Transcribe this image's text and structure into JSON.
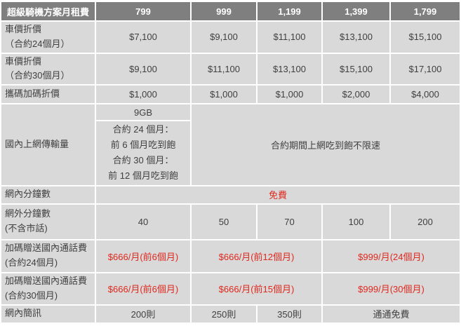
{
  "colors": {
    "header_bg": "#7f7f7f",
    "header_text": "#ffffff",
    "cell_bg": "#d9d9d9",
    "grid": "#ffffff",
    "body_text": "#404040",
    "highlight_red": "#e0281d"
  },
  "table": {
    "header": {
      "title": "超級騎機方案月租費",
      "plans": [
        "799",
        "999",
        "1,199",
        "1,399",
        "1,799"
      ]
    },
    "rows": {
      "car_discount_24": {
        "label_line1": "車價折價",
        "label_line2": "（合約24個月）",
        "values": [
          "$7,100",
          "$9,100",
          "$11,100",
          "$13,100",
          "$15,100"
        ]
      },
      "car_discount_30": {
        "label_line1": "車價折價",
        "label_line2": "（合約30個月）",
        "values": [
          "$9,100",
          "$11,100",
          "$13,100",
          "$15,100",
          "$17,100"
        ]
      },
      "porting_bonus_discount": {
        "label": "攜碼加碼折價",
        "values": [
          "$1,000",
          "$1,000",
          "$1,000",
          "$2,000",
          "$4,000"
        ]
      },
      "domestic_data": {
        "label": "國內上網傳輸量",
        "plan799_top": "9GB",
        "plan799_line1": "合約 24 個月：",
        "plan799_line2": "前 6 個月吃到飽",
        "plan799_line3": "合約 30 個月：",
        "plan799_line4": "前 12 個月吃到飽",
        "other_plans": "合約期間上網吃到飽不限速"
      },
      "innet_minutes": {
        "label": "網內分鐘數",
        "value": "免費"
      },
      "offnet_minutes": {
        "label_line1": "網外分鐘數",
        "label_line2": "(不含市話)",
        "values": [
          "40",
          "50",
          "70",
          "100",
          "200"
        ]
      },
      "bonus_calls_24": {
        "label_line1": "加碼贈送國內通話費",
        "label_line2": "(合約24個月)",
        "value_799": "$666/月(前6個月)",
        "value_999_1199": "$666/月(前12個月)",
        "value_1399_1799": "$999/月(24個月)"
      },
      "bonus_calls_30": {
        "label_line1": "加碼贈送國內通話費",
        "label_line2": "(合約30個月)",
        "value_799": "$666/月(前6個月)",
        "value_999_1199": "$666/月(前15個月)",
        "value_1399_1799": "$999/月(30個月)"
      },
      "innet_sms": {
        "label": "網內簡訊",
        "value_799": "200則",
        "value_999": "250則",
        "value_1199": "350則",
        "value_1399_1799": "通通免費"
      }
    }
  }
}
